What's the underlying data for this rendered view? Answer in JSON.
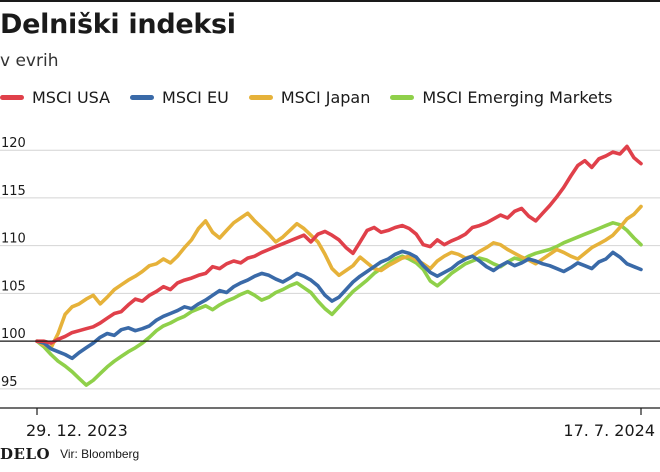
{
  "header": {
    "title": "Delniški indeksi",
    "subtitle": "v evrih"
  },
  "footer": {
    "logo": "DELO",
    "source": "Vir: Bloomberg"
  },
  "chart_data": {
    "type": "line",
    "x_start_label": "29. 12. 2023",
    "x_end_label": "17. 7. 2024",
    "ylim": [
      93,
      124
    ],
    "yticks": [
      95,
      100,
      105,
      110,
      115,
      120
    ],
    "grid": true,
    "baseline": 100,
    "legend_position": "top",
    "series": [
      {
        "name": "MSCI USA",
        "color": "#e0404a",
        "values": [
          100,
          100,
          99.8,
          100.2,
          100.5,
          100.9,
          101.1,
          101.3,
          101.5,
          101.9,
          102.4,
          102.9,
          103.1,
          103.8,
          104.4,
          104.2,
          104.8,
          105.2,
          105.7,
          105.4,
          106.1,
          106.4,
          106.6,
          106.9,
          107.1,
          107.8,
          107.6,
          108.1,
          108.4,
          108.2,
          108.7,
          108.9,
          109.3,
          109.6,
          109.9,
          110.2,
          110.5,
          110.8,
          111.1,
          110.4,
          111.2,
          111.5,
          111.1,
          110.6,
          109.8,
          109.2,
          110.4,
          111.6,
          111.9,
          111.4,
          111.6,
          111.9,
          112.1,
          111.8,
          111.2,
          110.1,
          109.9,
          110.6,
          110.1,
          110.5,
          110.8,
          111.2,
          111.9,
          112.1,
          112.4,
          112.8,
          113.2,
          112.9,
          113.6,
          113.9,
          113.1,
          112.6,
          113.4,
          114.2,
          115.1,
          116.1,
          117.3,
          118.4,
          118.9,
          118.2,
          119.1,
          119.4,
          119.8,
          119.6,
          120.4,
          119.2,
          118.6
        ],
        "note": ""
      },
      {
        "name": "MSCI EU",
        "color": "#3a6aa8",
        "values": [
          100,
          99.8,
          99.2,
          98.9,
          98.6,
          98.2,
          98.8,
          99.3,
          99.8,
          100.4,
          100.8,
          100.6,
          101.2,
          101.4,
          101.1,
          101.3,
          101.6,
          102.2,
          102.6,
          102.9,
          103.2,
          103.6,
          103.4,
          103.9,
          104.3,
          104.8,
          105.3,
          105.1,
          105.7,
          106.1,
          106.4,
          106.8,
          107.1,
          106.9,
          106.5,
          106.2,
          106.6,
          107.1,
          106.8,
          106.4,
          105.8,
          104.8,
          104.2,
          104.6,
          105.4,
          106.2,
          106.8,
          107.3,
          107.8,
          108.3,
          108.6,
          109.1,
          109.4,
          109.2,
          108.8,
          107.9,
          107.2,
          106.8,
          107.2,
          107.6,
          108.2,
          108.6,
          108.9,
          108.4,
          107.8,
          107.4,
          107.9,
          108.3,
          107.9,
          108.2,
          108.6,
          108.4,
          108.1,
          107.9,
          107.6,
          107.3,
          107.7,
          108.2,
          107.9,
          107.6,
          108.3,
          108.6,
          109.3,
          108.8,
          108.1,
          107.8,
          107.5
        ]
      },
      {
        "name": "MSCI Japan",
        "color": "#e6b23a",
        "values": [
          100,
          99.6,
          99.3,
          100.8,
          102.8,
          103.6,
          103.9,
          104.4,
          104.8,
          103.9,
          104.6,
          105.4,
          105.9,
          106.4,
          106.8,
          107.3,
          107.9,
          108.1,
          108.6,
          108.2,
          108.9,
          109.8,
          110.6,
          111.8,
          112.6,
          111.4,
          110.8,
          111.6,
          112.4,
          112.9,
          113.4,
          112.6,
          111.9,
          111.2,
          110.4,
          110.9,
          111.6,
          112.3,
          111.8,
          111.1,
          110.4,
          109.1,
          107.6,
          106.9,
          107.4,
          107.9,
          108.8,
          108.2,
          107.6,
          107.4,
          107.9,
          108.3,
          108.7,
          108.9,
          108.5,
          108.1,
          107.6,
          108.4,
          108.9,
          109.3,
          109.1,
          108.7,
          108.9,
          109.4,
          109.8,
          110.3,
          110.1,
          109.6,
          109.2,
          108.8,
          108.5,
          108.1,
          108.6,
          109.1,
          109.6,
          109.3,
          108.9,
          108.6,
          109.2,
          109.8,
          110.2,
          110.6,
          111.1,
          111.9,
          112.8,
          113.3,
          114.1
        ]
      },
      {
        "name": "MSCI Emerging Markets",
        "color": "#8fd04a",
        "values": [
          100,
          99.4,
          98.6,
          97.9,
          97.4,
          96.8,
          96.1,
          95.4,
          95.9,
          96.6,
          97.3,
          97.9,
          98.4,
          98.9,
          99.3,
          99.8,
          100.4,
          101.1,
          101.6,
          101.9,
          102.3,
          102.6,
          103.1,
          103.4,
          103.7,
          103.3,
          103.8,
          104.2,
          104.5,
          104.9,
          105.2,
          104.8,
          104.3,
          104.6,
          105.1,
          105.4,
          105.8,
          106.1,
          105.6,
          105.1,
          104.2,
          103.4,
          102.8,
          103.6,
          104.4,
          105.2,
          105.8,
          106.4,
          107.1,
          107.6,
          108.1,
          108.6,
          108.9,
          108.6,
          108.2,
          107.5,
          106.3,
          105.8,
          106.4,
          107.1,
          107.6,
          108.1,
          108.4,
          108.7,
          108.5,
          108.1,
          107.8,
          108.3,
          108.7,
          108.5,
          108.9,
          109.2,
          109.4,
          109.6,
          109.9,
          110.3,
          110.6,
          110.9,
          111.2,
          111.5,
          111.8,
          112.1,
          112.4,
          112.2,
          111.6,
          110.8,
          110.1
        ]
      }
    ]
  }
}
